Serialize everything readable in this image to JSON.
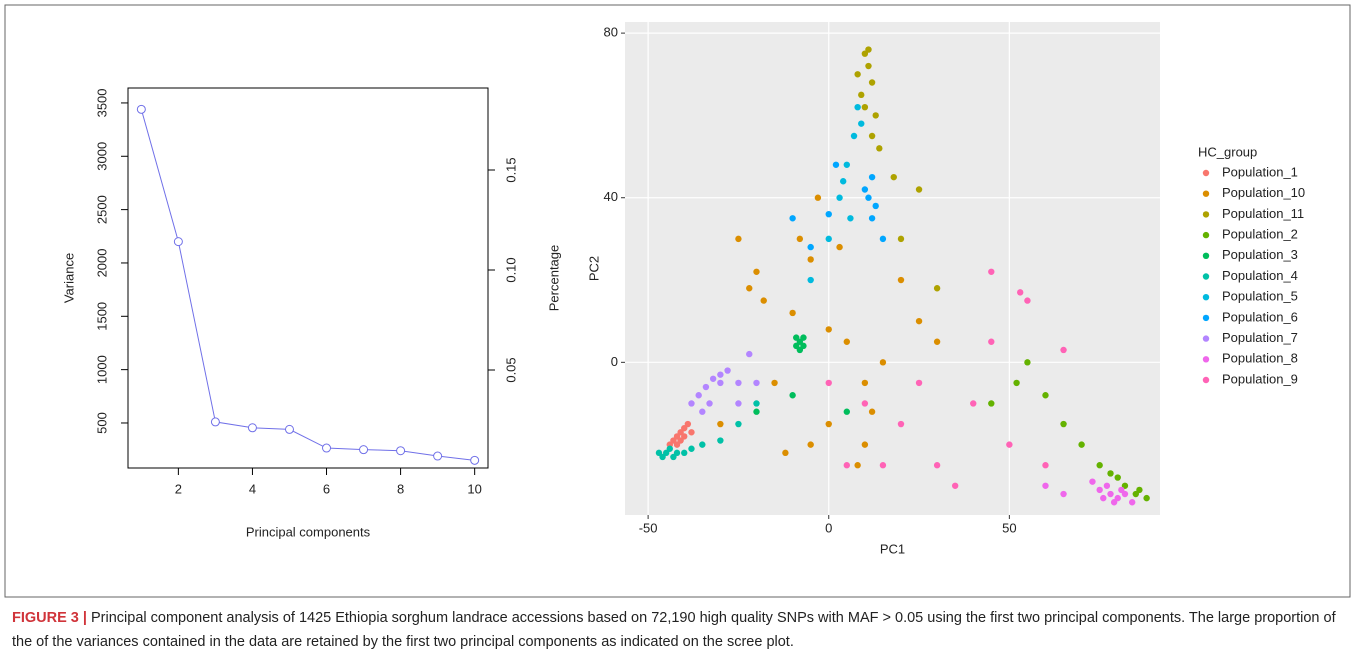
{
  "chart_data": [
    {
      "type": "line",
      "x_label": "Principal components",
      "y_label": "Variance",
      "y2_label": "Percentage",
      "x": [
        1,
        2,
        3,
        4,
        5,
        6,
        7,
        8,
        9,
        10
      ],
      "series": [
        {
          "color": "#7070e8",
          "values": [
            3440,
            2200,
            510,
            455,
            440,
            265,
            250,
            240,
            190,
            150
          ]
        }
      ],
      "xlim": [
        0.64,
        10.36
      ],
      "xticks": [
        2,
        4,
        6,
        8,
        10
      ],
      "ylim": [
        78,
        3640
      ],
      "yticks": [
        500,
        1000,
        1500,
        2000,
        2500,
        3000,
        3500
      ],
      "y2lim": [
        0.001,
        0.191
      ],
      "y2ticks": [
        0.05,
        {
          "value": 0.1,
          "label": "0.10"
        },
        0.15
      ]
    },
    {
      "type": "scatter",
      "x_label": "PC1",
      "y_label": "PC2",
      "legend_title": "HC_group",
      "grid": true,
      "xlim": [
        -56.4,
        91.7
      ],
      "xticks": [
        -50,
        0,
        50
      ],
      "ylim": [
        -37.1,
        82.7
      ],
      "yticks": [
        0,
        40,
        80
      ],
      "series": [
        {
          "name": "Population_1",
          "color": "#F8766D",
          "x": [
            -44,
            -43,
            -42,
            -41,
            -40,
            -39,
            -42,
            -40,
            -41,
            -38
          ],
          "y": [
            -20,
            -19,
            -18,
            -17,
            -16,
            -15,
            -20,
            -18,
            -19,
            -17
          ]
        },
        {
          "name": "Population_10",
          "color": "#DB8E00",
          "x": [
            -25,
            -20,
            -18,
            -10,
            -5,
            0,
            5,
            10,
            -15,
            0,
            -5,
            15,
            20,
            -30,
            -12,
            8,
            3,
            -3,
            10,
            25,
            -22,
            -8,
            12,
            30
          ],
          "y": [
            30,
            22,
            15,
            12,
            25,
            8,
            5,
            -5,
            -5,
            -15,
            -20,
            0,
            20,
            -15,
            -22,
            -25,
            28,
            40,
            -20,
            10,
            18,
            30,
            -12,
            5
          ]
        },
        {
          "name": "Population_11",
          "color": "#AEA200",
          "x": [
            8,
            10,
            11,
            12,
            9,
            13,
            12,
            14,
            10,
            18,
            25,
            20,
            30,
            11
          ],
          "y": [
            70,
            75,
            72,
            68,
            65,
            60,
            55,
            52,
            62,
            45,
            42,
            30,
            18,
            76
          ]
        },
        {
          "name": "Population_2",
          "color": "#64B200",
          "x": [
            88,
            85,
            82,
            78,
            75,
            70,
            65,
            60,
            55,
            52,
            45,
            80,
            86
          ],
          "y": [
            -33,
            -32,
            -30,
            -27,
            -25,
            -20,
            -15,
            -8,
            0,
            -5,
            -10,
            -28,
            -31
          ]
        },
        {
          "name": "Population_3",
          "color": "#00BD5C",
          "x": [
            -9,
            -8,
            -7,
            -8,
            -9,
            -7,
            -20,
            -10,
            5
          ],
          "y": [
            4,
            5,
            6,
            3,
            6,
            4,
            -12,
            -8,
            -12
          ]
        },
        {
          "name": "Population_4",
          "color": "#00C1A7",
          "x": [
            -47,
            -46,
            -45,
            -44,
            -43,
            -42,
            -40,
            -38,
            -35,
            -30,
            -25,
            -20
          ],
          "y": [
            -22,
            -23,
            -22,
            -21,
            -23,
            -22,
            -22,
            -21,
            -20,
            -19,
            -15,
            -10
          ]
        },
        {
          "name": "Population_5",
          "color": "#00BADE",
          "x": [
            8,
            7,
            5,
            3,
            6,
            0,
            -5,
            9,
            4
          ],
          "y": [
            62,
            55,
            48,
            40,
            35,
            30,
            20,
            58,
            44
          ]
        },
        {
          "name": "Population_6",
          "color": "#00A6FF",
          "x": [
            12,
            11,
            13,
            10,
            12,
            -10,
            -5,
            2,
            0,
            15
          ],
          "y": [
            45,
            40,
            38,
            42,
            35,
            35,
            28,
            48,
            36,
            30
          ]
        },
        {
          "name": "Population_7",
          "color": "#B385FF",
          "x": [
            -38,
            -36,
            -34,
            -32,
            -30,
            -28,
            -35,
            -33,
            -25,
            -22,
            -30,
            -20,
            -25
          ],
          "y": [
            -10,
            -8,
            -6,
            -4,
            -3,
            -2,
            -12,
            -10,
            -5,
            2,
            -5,
            -5,
            -10
          ]
        },
        {
          "name": "Population_8",
          "color": "#EF67EB",
          "x": [
            75,
            78,
            80,
            82,
            84,
            77,
            79,
            81,
            73,
            76,
            60,
            65
          ],
          "y": [
            -31,
            -32,
            -33,
            -32,
            -34,
            -30,
            -34,
            -31,
            -29,
            -33,
            -30,
            -32
          ]
        },
        {
          "name": "Population_9",
          "color": "#FF63B6",
          "x": [
            0,
            10,
            20,
            30,
            40,
            50,
            60,
            45,
            55,
            65,
            35,
            25,
            15,
            45,
            53,
            5
          ],
          "y": [
            -5,
            -10,
            -15,
            -25,
            -10,
            -20,
            -25,
            5,
            15,
            3,
            -30,
            -5,
            -25,
            22,
            17,
            -25
          ]
        }
      ]
    }
  ],
  "caption": {
    "label": "FIGURE 3 |",
    "text": "Principal component analysis of 1425 Ethiopia sorghum landrace accessions based on 72,190 high quality SNPs with MAF > 0.05 using the first two principal components. The large proportion of the of the variances contained in the data are retained by the first two principal components as indicated on the scree plot."
  }
}
